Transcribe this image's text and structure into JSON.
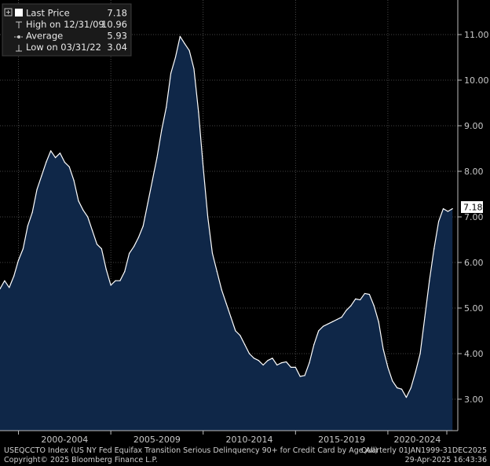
{
  "legend": {
    "last_label": "Last Price",
    "last_value": "7.18",
    "high_label": "High on 12/31/09",
    "high_value": "10.96",
    "avg_label": "Average",
    "avg_value": "5.93",
    "low_label": "Low on 03/31/22",
    "low_value": "3.04"
  },
  "last_tag": "7.18",
  "footer": {
    "line1_left": "USEQCCTO Index (US NY Fed Equifax Transition Serious Delinquency 90+ for Credit Card by Age All)",
    "line1_right": "Quarterly 01JAN1999-31DEC2025",
    "line2_left": "Copyright© 2025 Bloomberg Finance L.P.",
    "line2_right": "29-Apr-2025 16:43:36"
  },
  "colors": {
    "background": "#000000",
    "area_fill": "#0f2748",
    "line": "#ffffff",
    "grid": "#5a5a5a"
  },
  "chart_data": {
    "type": "area",
    "frequency": "quarterly",
    "x_start": "1999Q1",
    "ylim": [
      2.4,
      11.5
    ],
    "y_ticks": [
      "3.00",
      "4.00",
      "5.00",
      "6.00",
      "7.00",
      "8.00",
      "9.00",
      "10.00",
      "11.00"
    ],
    "x_tick_labels": [
      "2000-2004",
      "2005-2009",
      "2010-2014",
      "2015-2019",
      "2020-2024"
    ],
    "grid": true,
    "values": [
      5.42,
      5.6,
      5.45,
      5.7,
      6.05,
      6.3,
      6.8,
      7.1,
      7.6,
      7.9,
      8.2,
      8.45,
      8.3,
      8.4,
      8.2,
      8.1,
      7.8,
      7.35,
      7.15,
      7.0,
      6.7,
      6.4,
      6.3,
      5.85,
      5.5,
      5.6,
      5.6,
      5.8,
      6.2,
      6.35,
      6.55,
      6.8,
      7.3,
      7.8,
      8.3,
      8.9,
      9.4,
      10.15,
      10.5,
      10.96,
      10.8,
      10.65,
      10.25,
      9.3,
      8.1,
      7.0,
      6.2,
      5.8,
      5.4,
      5.1,
      4.8,
      4.5,
      4.4,
      4.2,
      4.0,
      3.9,
      3.85,
      3.75,
      3.85,
      3.9,
      3.75,
      3.8,
      3.82,
      3.7,
      3.7,
      3.5,
      3.52,
      3.8,
      4.2,
      4.5,
      4.6,
      4.65,
      4.7,
      4.75,
      4.8,
      4.95,
      5.05,
      5.2,
      5.18,
      5.32,
      5.3,
      5.05,
      4.7,
      4.1,
      3.7,
      3.4,
      3.25,
      3.22,
      3.04,
      3.25,
      3.6,
      4.0,
      4.8,
      5.6,
      6.3,
      6.9,
      7.18,
      7.12,
      7.18
    ]
  }
}
